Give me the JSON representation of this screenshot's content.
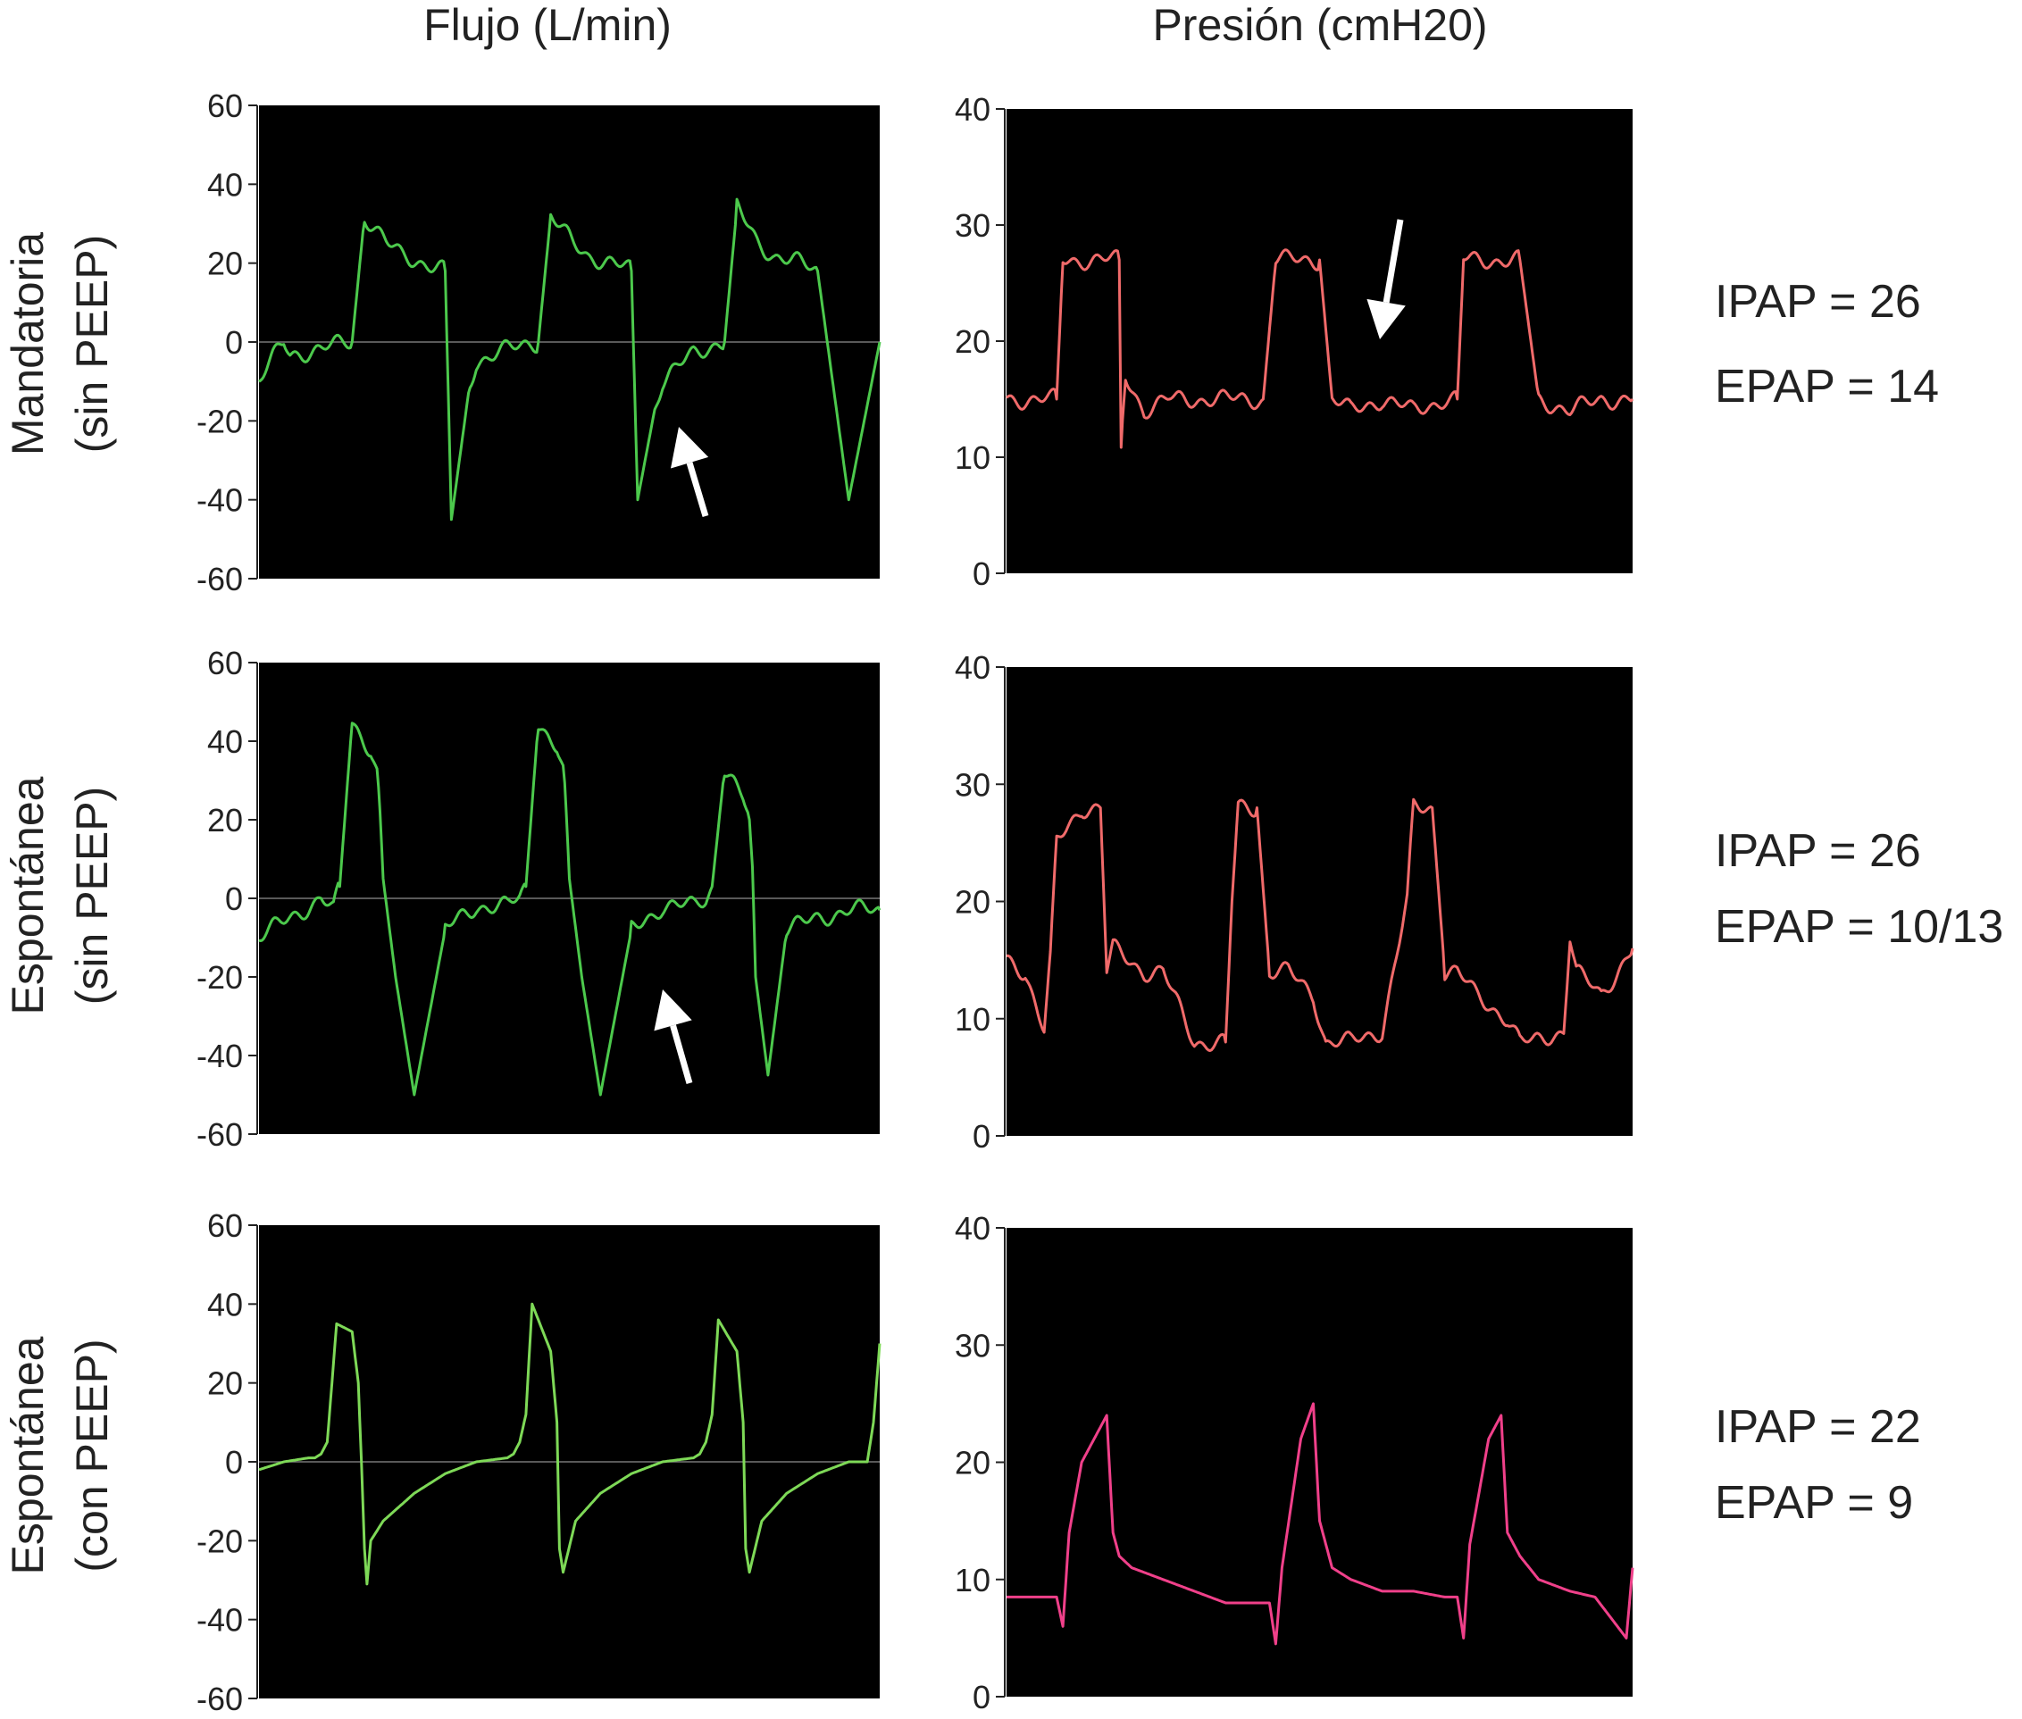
{
  "headers": {
    "flow": "Flujo (L/min)",
    "pressure": "Presión (cmH20)"
  },
  "rows": [
    {
      "label_line1": "Mandatoria",
      "label_line2": "(sin PEEP)",
      "ipap": "IPAP = 26",
      "epap": "EPAP = 14"
    },
    {
      "label_line1": "Espontánea",
      "label_line2": "(sin PEEP)",
      "ipap": "IPAP = 26",
      "epap": "EPAP = 10/13"
    },
    {
      "label_line1": "Espontánea",
      "label_line2": "(con PEEP)",
      "ipap": "IPAP = 22",
      "epap": "EPAP = 9"
    }
  ],
  "colors": {
    "panel_bg": "#000000",
    "flow_trace": "#4cc94c",
    "flow_trace_row3": "#7ed957",
    "pressure_trace": "#f06a6a",
    "pressure_trace_row3": "#f0408a",
    "arrow": "#ffffff"
  },
  "chart_data": [
    {
      "type": "line",
      "title": "",
      "xlabel": "",
      "ylabel": "Flujo (L/min)",
      "ylim": [
        -60,
        60
      ],
      "yticks": [
        "60",
        "40",
        "20",
        "0",
        "-20",
        "-40",
        "-60"
      ],
      "grid": false,
      "zero_line": true,
      "noisy": true,
      "series": [
        {
          "x": [
            0,
            2,
            4,
            5,
            10,
            14,
            15,
            17,
            20,
            20.5,
            23,
            27,
            30,
            31,
            34,
            35,
            40,
            44,
            45,
            47,
            50,
            50.5,
            53,
            57,
            60,
            61,
            64,
            65,
            70,
            74,
            75,
            77,
            80,
            80.5,
            83,
            87,
            90,
            95,
            100
          ],
          "y": [
            -10,
            -5,
            0,
            -3,
            -2,
            0,
            0,
            32,
            26,
            25,
            22,
            20,
            18,
            -45,
            -10,
            -5,
            -2,
            0,
            0,
            32,
            26,
            25,
            22,
            20,
            18,
            -40,
            -15,
            -10,
            -3,
            0,
            0,
            34,
            26,
            25,
            22,
            20,
            18,
            -40,
            0
          ]
        }
      ],
      "annotation": "arrow"
    },
    {
      "type": "line",
      "title": "",
      "xlabel": "",
      "ylabel": "Presión (cmH20)",
      "ylim": [
        0,
        40
      ],
      "yticks": [
        "40",
        "30",
        "20",
        "10",
        "0"
      ],
      "grid": false,
      "noisy": true,
      "series": [
        {
          "x": [
            0,
            5,
            8,
            9,
            11,
            13,
            18,
            18.3,
            19,
            22,
            26,
            30,
            35,
            40,
            41,
            43,
            46,
            49,
            50,
            52,
            55,
            60,
            65,
            70,
            72,
            73,
            75,
            78,
            82,
            85,
            90,
            95,
            100
          ],
          "y": [
            15,
            15,
            15,
            27,
            27,
            27,
            27,
            11,
            17,
            14,
            15,
            15,
            15,
            15,
            15,
            27,
            27,
            27,
            27,
            15,
            14,
            15,
            14,
            15,
            15,
            27,
            27,
            27,
            27,
            15,
            14,
            15,
            15
          ]
        }
      ],
      "annotation": "arrow"
    },
    {
      "type": "line",
      "title": "",
      "xlabel": "",
      "ylabel": "Flujo (L/min)",
      "ylim": [
        -60,
        60
      ],
      "yticks": [
        "60",
        "40",
        "20",
        "0",
        "-20",
        "-40",
        "-60"
      ],
      "grid": false,
      "zero_line": true,
      "noisy": true,
      "series": [
        {
          "x": [
            0,
            5,
            10,
            12,
            13,
            15,
            18,
            19,
            19.5,
            20,
            22,
            25,
            30,
            35,
            40,
            42,
            43,
            45,
            48,
            49,
            49.5,
            50,
            52,
            55,
            60,
            65,
            70,
            72,
            73,
            75,
            78,
            79,
            79.5,
            80,
            82,
            85,
            90,
            95,
            100
          ],
          "y": [
            -10,
            -5,
            0,
            -3,
            3,
            45,
            38,
            32,
            22,
            5,
            -20,
            -50,
            -8,
            -2,
            -2,
            0,
            3,
            45,
            38,
            32,
            22,
            5,
            -20,
            -50,
            -8,
            -2,
            -2,
            0,
            3,
            33,
            25,
            20,
            8,
            -20,
            -45,
            -8,
            -5,
            -3,
            -3
          ]
        }
      ],
      "annotation": "arrow"
    },
    {
      "type": "line",
      "title": "",
      "xlabel": "",
      "ylabel": "Presión (cmH20)",
      "ylim": [
        0,
        40
      ],
      "yticks": [
        "40",
        "30",
        "20",
        "10",
        "0"
      ],
      "grid": false,
      "noisy": true,
      "series": [
        {
          "x": [
            0,
            3,
            6,
            7,
            8,
            12,
            15,
            16,
            17,
            22,
            25,
            30,
            35,
            36,
            37,
            38,
            40,
            42,
            45,
            49,
            50,
            51,
            55,
            60,
            64,
            65,
            66,
            68,
            70,
            72,
            75,
            80,
            82,
            84,
            89,
            90,
            91,
            95,
            100
          ],
          "y": [
            15,
            14,
            9,
            15,
            25,
            28,
            28,
            14,
            16,
            14,
            14,
            8,
            8,
            20,
            28,
            28,
            28,
            14,
            14,
            12,
            10,
            8,
            8,
            9,
            20,
            28,
            28,
            28,
            14,
            14,
            12,
            10,
            8,
            8,
            9,
            17,
            14,
            12,
            16
          ]
        }
      ]
    },
    {
      "type": "line",
      "title": "",
      "xlabel": "",
      "ylabel": "Flujo (L/min)",
      "ylim": [
        -60,
        60
      ],
      "yticks": [
        "60",
        "40",
        "20",
        "0",
        "-20",
        "-40",
        "-60"
      ],
      "grid": false,
      "zero_line": true,
      "series": [
        {
          "x": [
            0,
            4,
            8,
            9,
            10,
            11,
            12.5,
            15,
            16,
            16.5,
            17,
            17.4,
            18,
            20,
            25,
            30,
            35,
            40,
            41,
            42,
            43,
            44,
            47,
            48,
            48.4,
            49,
            51,
            55,
            60,
            65,
            70,
            71,
            72,
            73,
            74,
            77,
            78,
            78.4,
            79,
            81,
            85,
            90,
            95,
            98,
            99,
            100
          ],
          "y": [
            -2,
            0,
            1,
            1,
            2,
            5,
            35,
            33,
            20,
            0,
            -22,
            -31,
            -20,
            -15,
            -8,
            -3,
            0,
            1,
            2,
            5,
            12,
            40,
            28,
            10,
            -22,
            -28,
            -15,
            -8,
            -3,
            0,
            1,
            2,
            5,
            12,
            36,
            28,
            10,
            -22,
            -28,
            -15,
            -8,
            -3,
            0,
            0,
            10,
            30
          ]
        }
      ]
    },
    {
      "type": "line",
      "title": "",
      "xlabel": "",
      "ylabel": "Presión (cmH20)",
      "ylim": [
        0,
        40
      ],
      "yticks": [
        "40",
        "30",
        "20",
        "10",
        "0"
      ],
      "grid": false,
      "series": [
        {
          "x": [
            0,
            5,
            8,
            9,
            10,
            12,
            15,
            16,
            17,
            18,
            20,
            25,
            30,
            35,
            40,
            42,
            43,
            44,
            47,
            49,
            50,
            52,
            55,
            60,
            65,
            70,
            72,
            73,
            74,
            77,
            79,
            80,
            82,
            85,
            90,
            94,
            99,
            100
          ],
          "y": [
            8.5,
            8.5,
            8.5,
            6,
            14,
            20,
            23,
            24,
            14,
            12,
            11,
            10,
            9,
            8,
            8,
            8,
            4.5,
            11,
            22,
            25,
            15,
            11,
            10,
            9,
            9,
            8.5,
            8.5,
            5,
            13,
            22,
            24,
            14,
            12,
            10,
            9,
            8.5,
            5,
            11
          ]
        }
      ]
    }
  ]
}
